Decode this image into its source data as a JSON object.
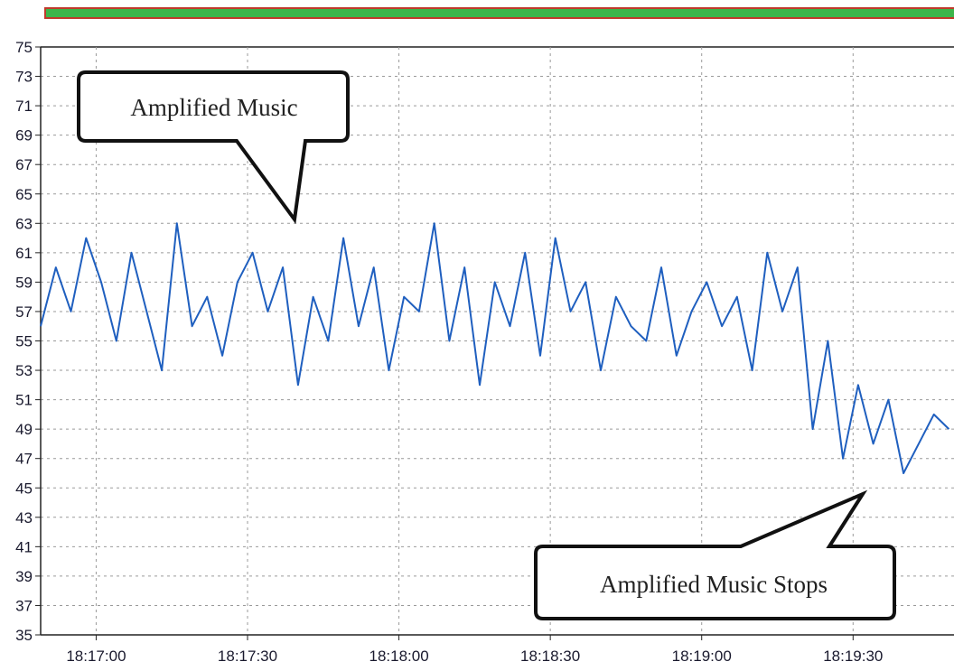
{
  "chart_data": {
    "type": "line",
    "title": "",
    "xlabel": "",
    "ylabel": "",
    "ylim": [
      35,
      75
    ],
    "xlim": [
      "18:16:49",
      "18:19:50"
    ],
    "y_ticks": [
      35,
      37,
      39,
      41,
      43,
      45,
      47,
      49,
      51,
      53,
      55,
      57,
      59,
      61,
      63,
      65,
      67,
      69,
      71,
      73,
      75
    ],
    "x_ticks": [
      "18:17:00",
      "18:17:30",
      "18:18:00",
      "18:18:30",
      "18:19:00",
      "18:19:30"
    ],
    "grid": true,
    "series": [
      {
        "color": "#1f5fbf",
        "x": [
          "18:16:49",
          "18:16:52",
          "18:16:55",
          "18:16:58",
          "18:17:01",
          "18:17:04",
          "18:17:07",
          "18:17:10",
          "18:17:13",
          "18:17:16",
          "18:17:19",
          "18:17:22",
          "18:17:25",
          "18:17:28",
          "18:17:31",
          "18:17:34",
          "18:17:37",
          "18:17:40",
          "18:17:43",
          "18:17:46",
          "18:17:49",
          "18:17:52",
          "18:17:55",
          "18:17:58",
          "18:18:01",
          "18:18:04",
          "18:18:07",
          "18:18:10",
          "18:18:13",
          "18:18:16",
          "18:18:19",
          "18:18:22",
          "18:18:25",
          "18:18:28",
          "18:18:31",
          "18:18:34",
          "18:18:37",
          "18:18:40",
          "18:18:43",
          "18:18:46",
          "18:18:49",
          "18:18:52",
          "18:18:55",
          "18:18:58",
          "18:19:01",
          "18:19:04",
          "18:19:07",
          "18:19:10",
          "18:19:13",
          "18:19:16",
          "18:19:19",
          "18:19:22",
          "18:19:25",
          "18:19:28",
          "18:19:31",
          "18:19:34",
          "18:19:37",
          "18:19:40",
          "18:19:43",
          "18:19:46",
          "18:19:49"
        ],
        "y": [
          56,
          60,
          57,
          62,
          59,
          55,
          61,
          57,
          53,
          63,
          56,
          58,
          54,
          59,
          61,
          57,
          60,
          52,
          58,
          55,
          62,
          56,
          60,
          53,
          58,
          57,
          63,
          55,
          60,
          52,
          59,
          56,
          61,
          54,
          62,
          57,
          59,
          53,
          58,
          56,
          55,
          60,
          54,
          57,
          59,
          56,
          58,
          53,
          61,
          57,
          60,
          49,
          55,
          47,
          52,
          48,
          51,
          46,
          48,
          50,
          49
        ]
      }
    ]
  },
  "annotations": {
    "music": "Amplified Music",
    "stops": "Amplified Music Stops"
  },
  "colors": {
    "top_bar": "#3cb54a",
    "top_bar_border": "#c0392b",
    "line": "#1f5fbf",
    "grid": "#9a9a9a"
  }
}
